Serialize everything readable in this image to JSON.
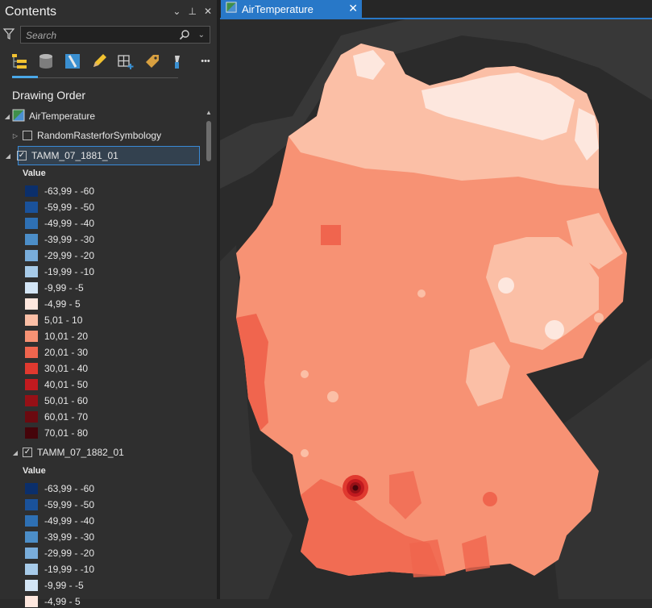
{
  "contents_panel": {
    "title": "Contents",
    "header_buttons": {
      "menu": "⌄",
      "pin": "⊥",
      "close": "✕"
    },
    "search": {
      "placeholder": "Search",
      "value": ""
    },
    "toolbar": [
      {
        "name": "list-by-drawing-order-icon"
      },
      {
        "name": "list-by-data-source-icon"
      },
      {
        "name": "list-by-selection-icon"
      },
      {
        "name": "list-by-editing-icon"
      },
      {
        "name": "list-by-snapping-icon"
      },
      {
        "name": "list-by-labeling-icon"
      },
      {
        "name": "list-by-charts-icon"
      },
      {
        "name": "more-icon",
        "label": "•••"
      }
    ],
    "section_title": "Drawing Order",
    "map_node": {
      "label": "AirTemperature",
      "expander": "◢"
    },
    "layers": [
      {
        "label": "RandomRasterforSymbology",
        "checked": false,
        "expander": "▷"
      },
      {
        "label": "TAMM_07_1881_01",
        "checked": true,
        "expander": "◢",
        "selected": true
      },
      {
        "label": "TAMM_07_1882_01",
        "checked": true,
        "expander": "◢",
        "selected": false
      }
    ],
    "value_label": "Value",
    "legend": [
      {
        "label": "-63,99 - -60",
        "color": "#0b2f6b"
      },
      {
        "label": "-59,99 - -50",
        "color": "#1a529b"
      },
      {
        "label": "-49,99 - -40",
        "color": "#2e70b4"
      },
      {
        "label": "-39,99 - -30",
        "color": "#4c8ec8"
      },
      {
        "label": "-29,99 - -20",
        "color": "#79addb"
      },
      {
        "label": "-19,99 - -10",
        "color": "#a7cbe9"
      },
      {
        "label": "-9,99 - -5",
        "color": "#d3e5f5"
      },
      {
        "label": "-4,99 - 5",
        "color": "#fde7de"
      },
      {
        "label": "5,01 - 10",
        "color": "#fbbfa6"
      },
      {
        "label": "10,01 - 20",
        "color": "#f79274"
      },
      {
        "label": "20,01 - 30",
        "color": "#f0654e"
      },
      {
        "label": "30,01 - 40",
        "color": "#e0392f"
      },
      {
        "label": "40,01 - 50",
        "color": "#c21a1f"
      },
      {
        "label": "50,01 - 60",
        "color": "#961016"
      },
      {
        "label": "60,01 - 70",
        "color": "#6b0a10"
      },
      {
        "label": "70,01 - 80",
        "color": "#45040a"
      }
    ],
    "legend2_partial": {
      "label": "-4,99 - 5",
      "color": "#fde7de"
    }
  },
  "map_view": {
    "tab_label": "AirTemperature",
    "tab_close": "✕",
    "colors": {
      "background": "#2b2b2b",
      "land_dark": "#383838",
      "coast_light": "#fde7de",
      "class_5_10": "#fbbfa6",
      "class_10_20": "#f79274",
      "class_20_30": "#f0654e",
      "hotspot": "#6b0a10"
    }
  }
}
